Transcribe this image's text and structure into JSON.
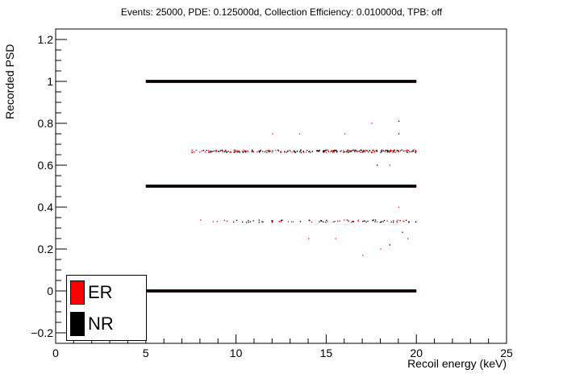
{
  "chart_data": {
    "type": "scatter",
    "title": "Events: 25000, PDE: 0.125000d, Collection Efficiency: 0.010000d, TPB: off",
    "xlabel": "Recoil energy (keV)",
    "ylabel": "Recorded PSD",
    "xlim": [
      0,
      25
    ],
    "ylim": [
      -0.25,
      1.25
    ],
    "xticks": [
      "0",
      "5",
      "10",
      "15",
      "20",
      "25"
    ],
    "yticks": [
      "−0.2",
      "0",
      "0.2",
      "0.4",
      "0.6",
      "0.8",
      "1",
      "1.2"
    ],
    "grid": false,
    "legend_placement": "bottom-left",
    "series": [
      {
        "name": "ER",
        "color": "#ff0000",
        "bands": [
          {
            "y": 0.0,
            "x_range": [
              5,
              20
            ],
            "density": "dense"
          },
          {
            "y": 0.333,
            "x_range": [
              8,
              20
            ],
            "density": "sparse"
          },
          {
            "y": 0.5,
            "x_range": [
              5,
              20
            ],
            "density": "dense"
          },
          {
            "y": 0.667,
            "x_range": [
              7.5,
              20
            ],
            "density": "medium"
          },
          {
            "y": 1.0,
            "x_range": [
              5,
              20
            ],
            "density": "dense"
          }
        ],
        "outliers": [
          {
            "x": 14,
            "y": 0.25
          },
          {
            "x": 15.5,
            "y": 0.25
          },
          {
            "x": 17,
            "y": 0.17
          },
          {
            "x": 18,
            "y": 0.2
          },
          {
            "x": 19,
            "y": 0.4
          },
          {
            "x": 17.5,
            "y": 0.8
          },
          {
            "x": 13.5,
            "y": 0.75
          },
          {
            "x": 16,
            "y": 0.75
          },
          {
            "x": 18.5,
            "y": 0.6
          },
          {
            "x": 19.5,
            "y": 0.25
          },
          {
            "x": 12,
            "y": 0.75
          }
        ]
      },
      {
        "name": "NR",
        "color": "#000000",
        "bands": [
          {
            "y": 0.0,
            "x_range": [
              5,
              20
            ],
            "density": "dense"
          },
          {
            "y": 0.333,
            "x_range": [
              10,
              20
            ],
            "density": "sparse"
          },
          {
            "y": 0.5,
            "x_range": [
              5,
              20
            ],
            "density": "dense"
          },
          {
            "y": 0.667,
            "x_range": [
              8,
              20
            ],
            "density": "medium"
          },
          {
            "y": 1.0,
            "x_range": [
              5,
              20
            ],
            "density": "dense"
          }
        ],
        "outliers": [
          {
            "x": 19,
            "y": 0.81
          },
          {
            "x": 18.5,
            "y": 0.22
          },
          {
            "x": 19,
            "y": 0.75
          },
          {
            "x": 17.8,
            "y": 0.6
          },
          {
            "x": 19.2,
            "y": 0.28
          }
        ]
      }
    ]
  }
}
